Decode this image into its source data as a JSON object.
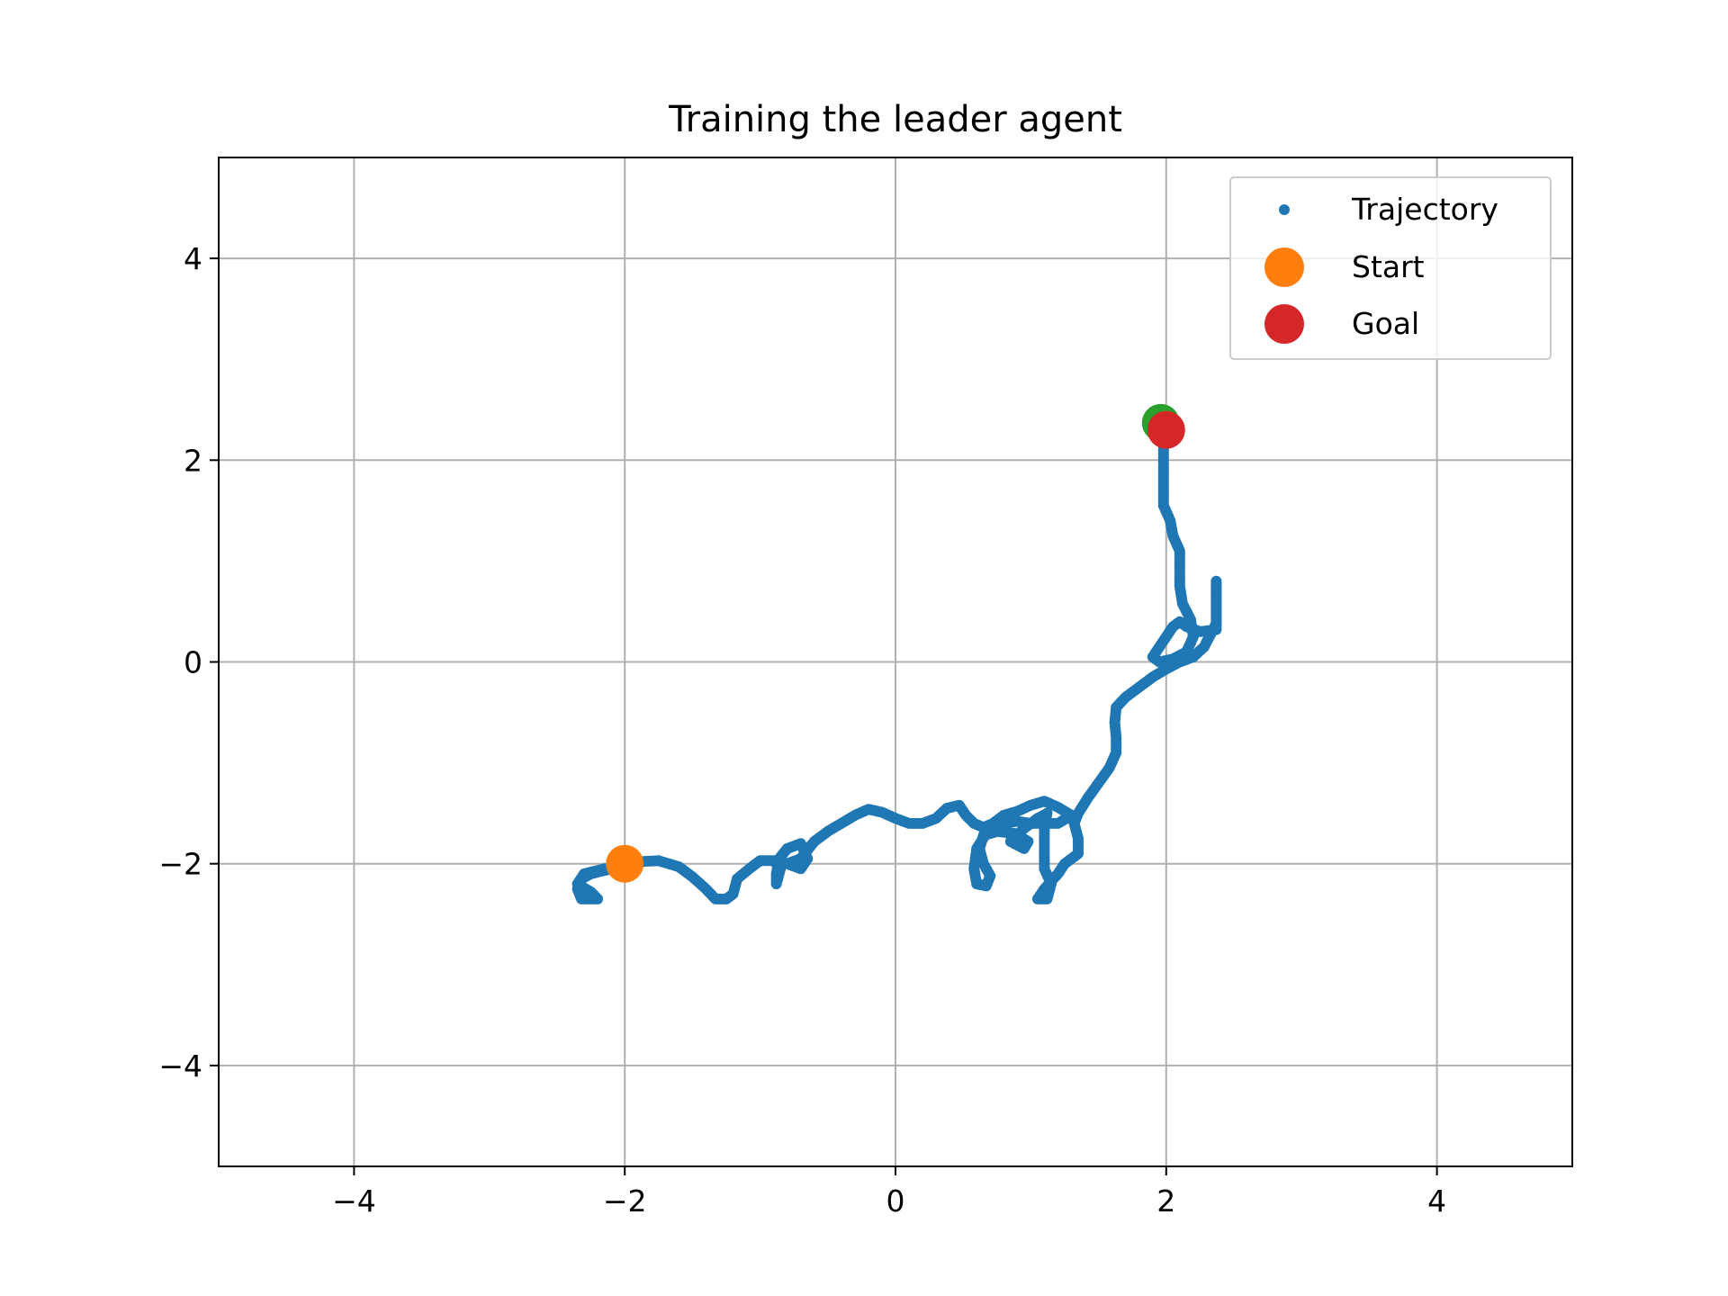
{
  "chart_data": {
    "type": "scatter",
    "title": "Training the leader agent",
    "xlabel": "",
    "ylabel": "",
    "xlim": [
      -5,
      5
    ],
    "ylim": [
      -5,
      5
    ],
    "xticks": [
      -4,
      -2,
      0,
      2,
      4
    ],
    "yticks": [
      -4,
      -2,
      0,
      2,
      4
    ],
    "xtick_labels": [
      "−4",
      "−2",
      "0",
      "2",
      "4"
    ],
    "ytick_labels": [
      "−4",
      "−2",
      "0",
      "2",
      "4"
    ],
    "grid": true,
    "legend_position": "top-right",
    "colors": {
      "trajectory": "#1f77b4",
      "start": "#ff7f0e",
      "goal": "#d62728",
      "final": "#2ca02c",
      "grid": "#b0b0b0"
    },
    "series": [
      {
        "name": "Trajectory",
        "kind": "trajectory",
        "points": [
          [
            -2.0,
            -2.0
          ],
          [
            -2.1,
            -2.05
          ],
          [
            -2.25,
            -2.1
          ],
          [
            -2.32,
            -2.15
          ],
          [
            -2.35,
            -2.25
          ],
          [
            -2.32,
            -2.35
          ],
          [
            -2.2,
            -2.35
          ],
          [
            -2.25,
            -2.28
          ],
          [
            -2.35,
            -2.2
          ],
          [
            -2.3,
            -2.1
          ],
          [
            -2.15,
            -2.05
          ],
          [
            -2.05,
            -2.03
          ],
          [
            -1.9,
            -1.98
          ],
          [
            -1.75,
            -1.97
          ],
          [
            -1.6,
            -2.03
          ],
          [
            -1.5,
            -2.13
          ],
          [
            -1.4,
            -2.25
          ],
          [
            -1.33,
            -2.35
          ],
          [
            -1.25,
            -2.35
          ],
          [
            -1.2,
            -2.3
          ],
          [
            -1.17,
            -2.15
          ],
          [
            -1.08,
            -2.05
          ],
          [
            -1.0,
            -1.97
          ],
          [
            -0.9,
            -1.97
          ],
          [
            -0.85,
            -2.05
          ],
          [
            -0.88,
            -2.2
          ],
          [
            -0.88,
            -2.1
          ],
          [
            -0.86,
            -1.95
          ],
          [
            -0.8,
            -1.85
          ],
          [
            -0.7,
            -1.8
          ],
          [
            -0.65,
            -1.95
          ],
          [
            -0.7,
            -2.05
          ],
          [
            -0.8,
            -2.0
          ],
          [
            -0.7,
            -1.95
          ],
          [
            -0.6,
            -1.78
          ],
          [
            -0.5,
            -1.68
          ],
          [
            -0.4,
            -1.6
          ],
          [
            -0.3,
            -1.52
          ],
          [
            -0.2,
            -1.46
          ],
          [
            -0.1,
            -1.49
          ],
          [
            0.0,
            -1.55
          ],
          [
            0.1,
            -1.6
          ],
          [
            0.2,
            -1.6
          ],
          [
            0.3,
            -1.55
          ],
          [
            0.38,
            -1.45
          ],
          [
            0.47,
            -1.42
          ],
          [
            0.52,
            -1.52
          ],
          [
            0.58,
            -1.6
          ],
          [
            0.65,
            -1.64
          ],
          [
            0.72,
            -1.6
          ],
          [
            0.8,
            -1.52
          ],
          [
            0.9,
            -1.48
          ],
          [
            1.0,
            -1.42
          ],
          [
            1.1,
            -1.38
          ],
          [
            1.2,
            -1.44
          ],
          [
            1.3,
            -1.52
          ],
          [
            1.2,
            -1.6
          ],
          [
            1.0,
            -1.6
          ],
          [
            0.9,
            -1.58
          ],
          [
            0.78,
            -1.6
          ],
          [
            0.67,
            -1.7
          ],
          [
            0.6,
            -1.85
          ],
          [
            0.58,
            -2.05
          ],
          [
            0.6,
            -2.2
          ],
          [
            0.67,
            -2.22
          ],
          [
            0.7,
            -2.12
          ],
          [
            0.65,
            -2.0
          ],
          [
            0.62,
            -1.85
          ],
          [
            0.65,
            -1.72
          ],
          [
            0.75,
            -1.68
          ],
          [
            0.88,
            -1.7
          ],
          [
            0.98,
            -1.78
          ],
          [
            0.95,
            -1.85
          ],
          [
            0.85,
            -1.78
          ],
          [
            0.95,
            -1.65
          ],
          [
            1.05,
            -1.55
          ],
          [
            1.12,
            -1.5
          ],
          [
            1.1,
            -1.65
          ],
          [
            1.1,
            -1.85
          ],
          [
            1.1,
            -2.05
          ],
          [
            1.15,
            -2.2
          ],
          [
            1.12,
            -2.35
          ],
          [
            1.05,
            -2.35
          ],
          [
            1.1,
            -2.25
          ],
          [
            1.2,
            -2.1
          ],
          [
            1.25,
            -2.0
          ],
          [
            1.35,
            -1.9
          ],
          [
            1.35,
            -1.75
          ],
          [
            1.32,
            -1.6
          ],
          [
            1.35,
            -1.5
          ],
          [
            1.42,
            -1.35
          ],
          [
            1.5,
            -1.2
          ],
          [
            1.58,
            -1.05
          ],
          [
            1.63,
            -0.9
          ],
          [
            1.63,
            -0.75
          ],
          [
            1.62,
            -0.6
          ],
          [
            1.63,
            -0.45
          ],
          [
            1.7,
            -0.35
          ],
          [
            1.8,
            -0.25
          ],
          [
            1.9,
            -0.15
          ],
          [
            2.0,
            -0.07
          ],
          [
            2.1,
            0.0
          ],
          [
            2.2,
            0.05
          ],
          [
            2.28,
            0.15
          ],
          [
            2.33,
            0.28
          ],
          [
            2.37,
            0.38
          ],
          [
            2.37,
            0.55
          ],
          [
            2.37,
            0.7
          ],
          [
            2.37,
            0.8
          ],
          [
            2.37,
            0.65
          ],
          [
            2.37,
            0.45
          ],
          [
            2.37,
            0.32
          ],
          [
            2.25,
            0.3
          ],
          [
            2.15,
            0.35
          ],
          [
            2.1,
            0.4
          ],
          [
            2.05,
            0.35
          ],
          [
            2.0,
            0.25
          ],
          [
            1.95,
            0.15
          ],
          [
            1.9,
            0.05
          ],
          [
            1.95,
            0.0
          ],
          [
            2.05,
            0.03
          ],
          [
            2.15,
            0.1
          ],
          [
            2.2,
            0.25
          ],
          [
            2.18,
            0.42
          ],
          [
            2.12,
            0.58
          ],
          [
            2.1,
            0.75
          ],
          [
            2.1,
            0.95
          ],
          [
            2.1,
            1.1
          ],
          [
            2.05,
            1.25
          ],
          [
            2.03,
            1.4
          ],
          [
            1.98,
            1.55
          ],
          [
            1.98,
            1.75
          ],
          [
            1.98,
            1.95
          ],
          [
            1.98,
            2.1
          ],
          [
            1.98,
            2.2
          ],
          [
            2.0,
            2.3
          ]
        ]
      },
      {
        "name": "Start",
        "kind": "start",
        "points": [
          [
            -2.0,
            -2.0
          ]
        ]
      },
      {
        "name": "Goal",
        "kind": "goal",
        "points": [
          [
            2.0,
            2.3
          ]
        ]
      },
      {
        "name": "",
        "kind": "final",
        "points": [
          [
            1.96,
            2.37
          ]
        ]
      }
    ]
  }
}
